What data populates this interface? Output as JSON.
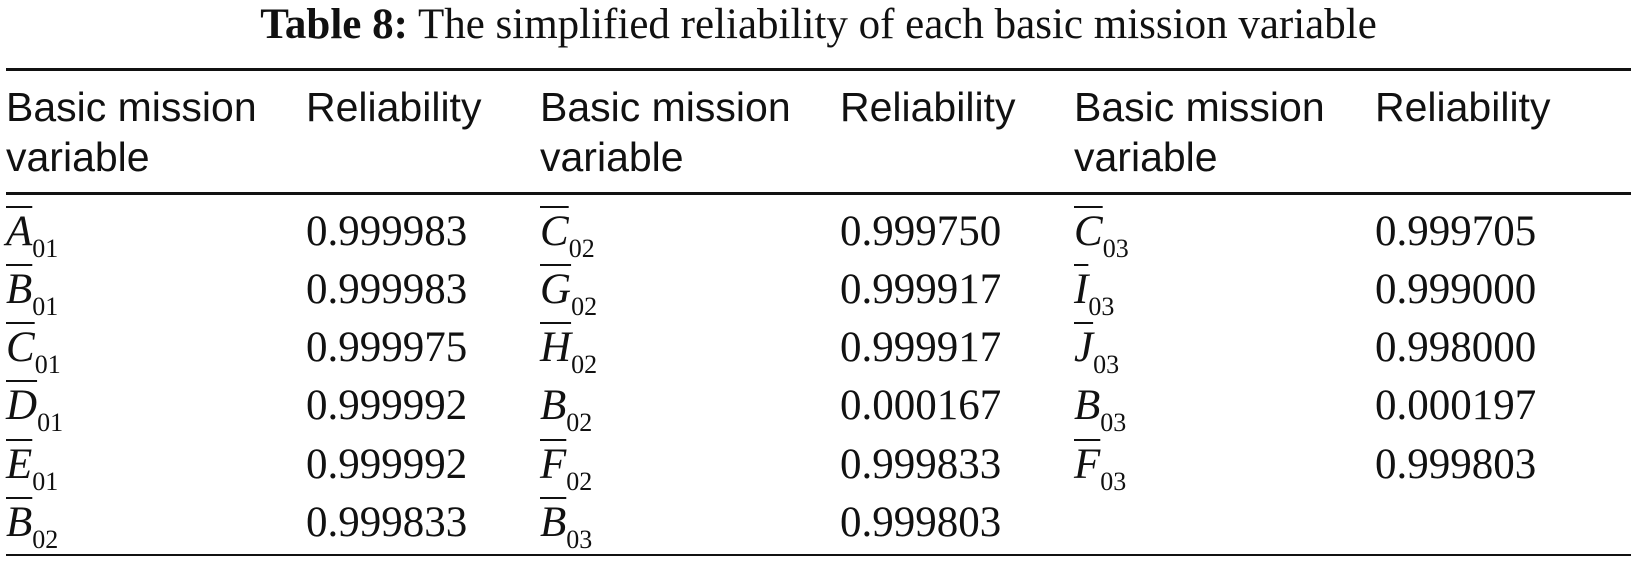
{
  "caption": {
    "label": "Table 8:",
    "text": "The simplified reliability of each basic mission variable"
  },
  "headers": [
    "Basic mission\nvariable",
    "Reliability",
    "Basic mission\nvariable",
    "Reliability",
    "Basic mission\nvariable",
    "Reliability"
  ],
  "rows": [
    [
      {
        "base": "A",
        "sub": "01",
        "bar": true
      },
      "0.999983",
      {
        "base": "C",
        "sub": "02",
        "bar": true
      },
      "0.999750",
      {
        "base": "C",
        "sub": "03",
        "bar": true
      },
      "0.999705"
    ],
    [
      {
        "base": "B",
        "sub": "01",
        "bar": true
      },
      "0.999983",
      {
        "base": "G",
        "sub": "02",
        "bar": true
      },
      "0.999917",
      {
        "base": "I",
        "sub": "03",
        "bar": true
      },
      "0.999000"
    ],
    [
      {
        "base": "C",
        "sub": "01",
        "bar": true
      },
      "0.999975",
      {
        "base": "H",
        "sub": "02",
        "bar": true
      },
      "0.999917",
      {
        "base": "J",
        "sub": "03",
        "bar": true
      },
      "0.998000"
    ],
    [
      {
        "base": "D",
        "sub": "01",
        "bar": true
      },
      "0.999992",
      {
        "base": "B",
        "sub": "02",
        "bar": false
      },
      "0.000167",
      {
        "base": "B",
        "sub": "03",
        "bar": false
      },
      "0.000197"
    ],
    [
      {
        "base": "E",
        "sub": "01",
        "bar": true
      },
      "0.999992",
      {
        "base": "F",
        "sub": "02",
        "bar": true
      },
      "0.999833",
      {
        "base": "F",
        "sub": "03",
        "bar": true
      },
      "0.999803"
    ],
    [
      {
        "base": "B",
        "sub": "02",
        "bar": true
      },
      "0.999833",
      {
        "base": "B",
        "sub": "03",
        "bar": true
      },
      "0.999803",
      null,
      null
    ]
  ]
}
